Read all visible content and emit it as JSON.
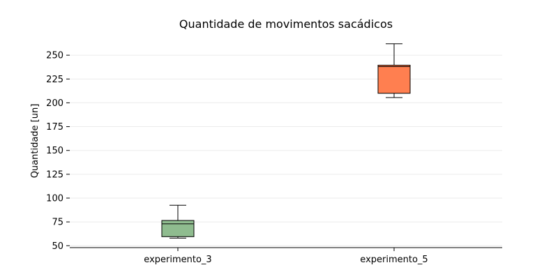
{
  "chart_data": {
    "type": "boxplot",
    "title": "Quantidade de movimentos sacádicos",
    "xlabel": "",
    "ylabel": "Quantidade [un]",
    "ylim": [
      48,
      264
    ],
    "yticks": [
      50,
      75,
      100,
      125,
      150,
      175,
      200,
      225,
      250
    ],
    "grid": "horizontal",
    "categories": [
      "experimento_3",
      "experimento_5"
    ],
    "boxes": [
      {
        "name": "experimento_3",
        "whisker_low": 58,
        "q1": 59.5,
        "median": 73,
        "q3": 76.5,
        "whisker_high": 92.5,
        "color": "#8fbc8f"
      },
      {
        "name": "experimento_5",
        "whisker_low": 205.5,
        "q1": 210,
        "median": 238,
        "q3": 239.5,
        "whisker_high": 262,
        "color": "#ff7f50"
      }
    ]
  }
}
